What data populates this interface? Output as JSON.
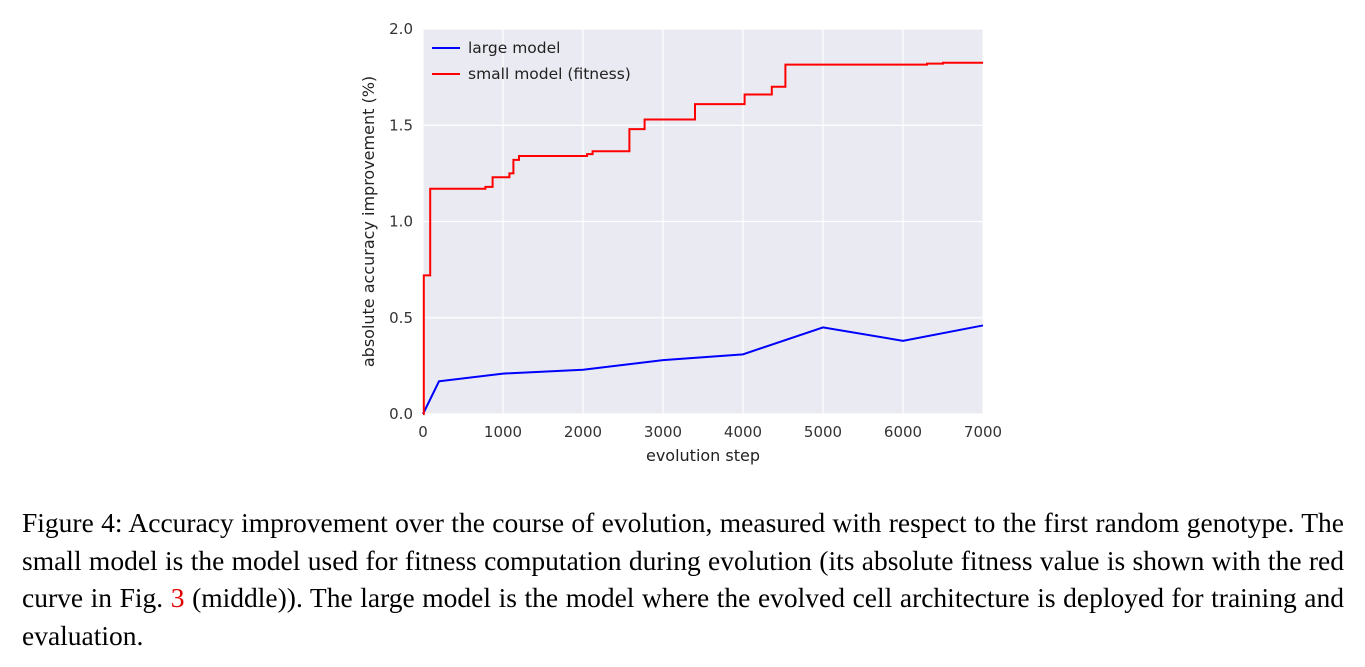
{
  "chart_data": {
    "type": "line",
    "xlabel": "evolution step",
    "ylabel": "absolute accuracy improvement (%)",
    "xlim": [
      0,
      7000
    ],
    "ylim": [
      0.0,
      2.0
    ],
    "xticks": [
      "0",
      "1000",
      "2000",
      "3000",
      "4000",
      "5000",
      "6000",
      "7000"
    ],
    "yticks": [
      "0.0",
      "0.5",
      "1.0",
      "1.5",
      "2.0"
    ],
    "grid": true,
    "legend_position": "top-left",
    "series": [
      {
        "name": "large model",
        "color": "#0000ff",
        "step": false,
        "x": [
          0,
          200,
          1000,
          2000,
          3000,
          4000,
          5000,
          6000,
          7000
        ],
        "y": [
          0.0,
          0.17,
          0.21,
          0.23,
          0.28,
          0.31,
          0.45,
          0.38,
          0.46
        ]
      },
      {
        "name": "small model (fitness)",
        "color": "#ff0000",
        "step": true,
        "x": [
          0,
          10,
          90,
          780,
          870,
          1080,
          1130,
          1200,
          2050,
          2120,
          2580,
          2770,
          3400,
          4020,
          4360,
          4530,
          6300,
          6500,
          7000
        ],
        "y": [
          0.0,
          0.72,
          1.17,
          1.18,
          1.23,
          1.25,
          1.32,
          1.34,
          1.35,
          1.365,
          1.48,
          1.53,
          1.61,
          1.66,
          1.7,
          1.815,
          1.82,
          1.825,
          1.825
        ]
      }
    ]
  },
  "caption": {
    "text_before_ref": "Figure 4: Accuracy improvement over the course of evolution, measured with respect to the first random genotype. The small model is the model used for fitness computation during evolution (its absolute fitness value is shown with the red curve in Fig. ",
    "ref": "3",
    "text_after_ref": " (middle)). The large model is the model where the evolved cell architecture is deployed for training and evaluation."
  }
}
